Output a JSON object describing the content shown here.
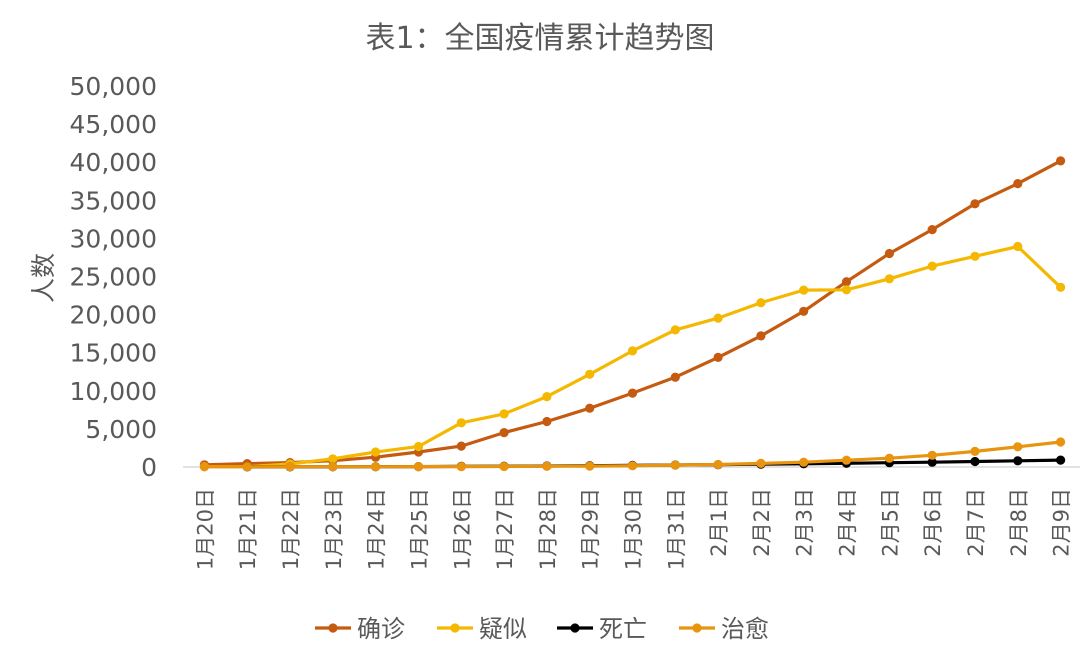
{
  "chart_data": {
    "type": "line",
    "title": "表1：全国疫情累计趋势图",
    "xlabel": "",
    "ylabel": "人数",
    "ylim": [
      0,
      50000
    ],
    "y_ticks": [
      0,
      5000,
      10000,
      15000,
      20000,
      25000,
      30000,
      35000,
      40000,
      45000,
      50000
    ],
    "y_tick_labels": [
      "0",
      "5,000",
      "10,000",
      "15,000",
      "20,000",
      "25,000",
      "30,000",
      "35,000",
      "40,000",
      "45,000",
      "50,000"
    ],
    "grid": false,
    "legend_position": "bottom",
    "categories": [
      "1月20日",
      "1月21日",
      "1月22日",
      "1月23日",
      "1月24日",
      "1月25日",
      "1月26日",
      "1月27日",
      "1月28日",
      "1月29日",
      "1月30日",
      "1月31日",
      "2月1日",
      "2月2日",
      "2月3日",
      "2月4日",
      "2月5日",
      "2月6日",
      "2月7日",
      "2月8日",
      "2月9日"
    ],
    "series": [
      {
        "name": "确诊",
        "color": "#C55A11",
        "values": [
          291,
          440,
          571,
          830,
          1287,
          1975,
          2744,
          4515,
          5974,
          7711,
          9692,
          11791,
          14380,
          17205,
          20438,
          24324,
          28018,
          31161,
          34546,
          37198,
          40171
        ]
      },
      {
        "name": "疑似",
        "color": "#F5B800",
        "values": [
          54,
          37,
          393,
          1072,
          1965,
          2684,
          5794,
          6973,
          9239,
          12167,
          15238,
          17988,
          19544,
          21558,
          23214,
          23260,
          24702,
          26359,
          27657,
          28942,
          23589
        ]
      },
      {
        "name": "死亡",
        "color": "#000000",
        "values": [
          null,
          9,
          17,
          25,
          41,
          56,
          80,
          106,
          132,
          170,
          213,
          259,
          304,
          361,
          425,
          490,
          563,
          636,
          722,
          811,
          908
        ]
      },
      {
        "name": "治愈",
        "color": "#E8940F",
        "values": [
          25,
          25,
          28,
          34,
          38,
          49,
          51,
          60,
          103,
          124,
          171,
          243,
          328,
          475,
          632,
          892,
          1153,
          1540,
          2050,
          2649,
          3281
        ]
      }
    ]
  }
}
